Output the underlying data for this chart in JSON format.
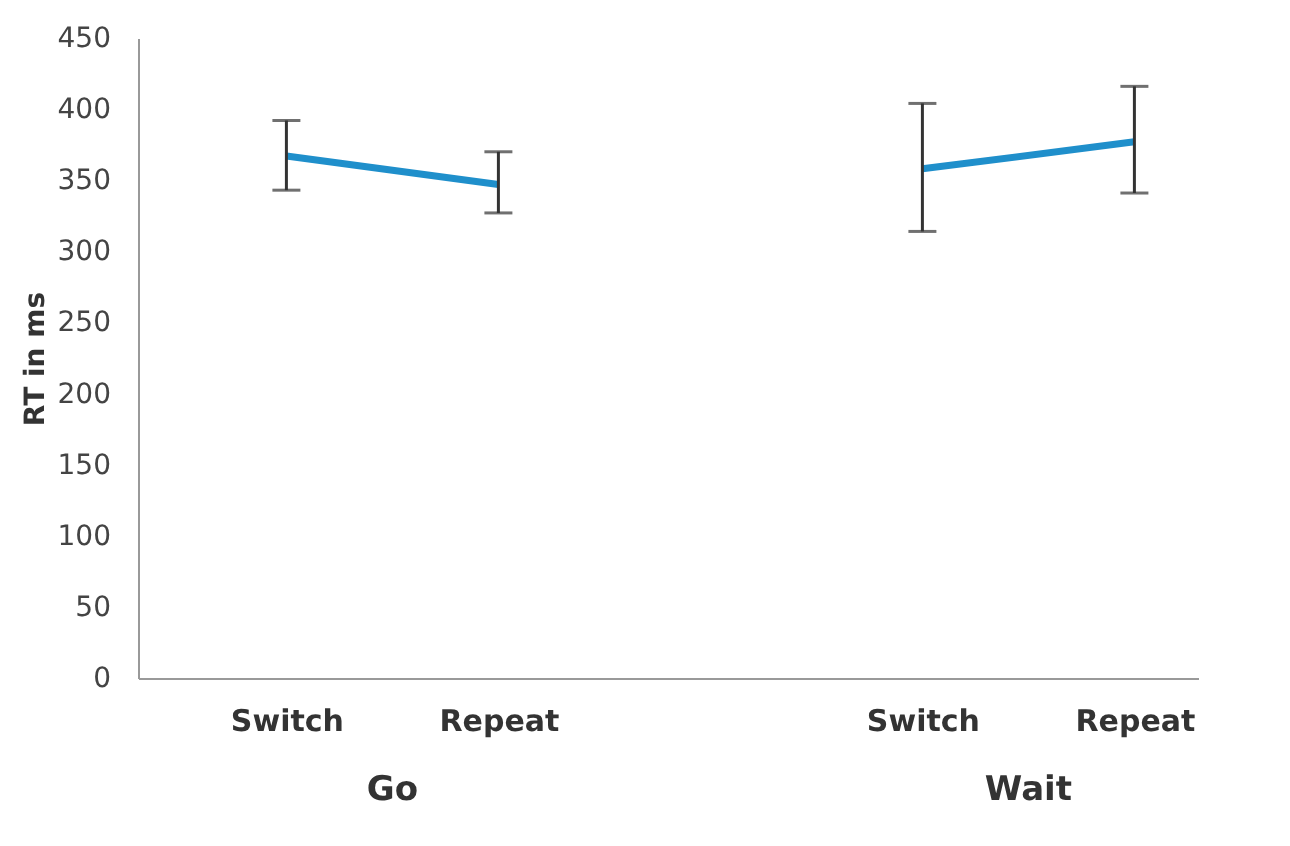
{
  "chart_data": {
    "type": "line",
    "ylabel": "RT in ms",
    "categories": [
      "Switch",
      "Repeat",
      null,
      "Switch",
      "Repeat"
    ],
    "series": [
      {
        "color": "#1f8fcb",
        "values": [
          367,
          347,
          null,
          358,
          377
        ],
        "errors": [
          [
            343,
            392
          ],
          [
            327,
            370
          ],
          null,
          [
            314,
            404
          ],
          [
            341,
            416
          ]
        ]
      }
    ],
    "ylim": [
      0,
      450
    ],
    "yticks": [
      0,
      50,
      100,
      150,
      200,
      250,
      300,
      350,
      400,
      450
    ],
    "annotations": [
      "Go",
      "Wait"
    ],
    "grid": false,
    "marker": "none",
    "line_style": "solid"
  }
}
